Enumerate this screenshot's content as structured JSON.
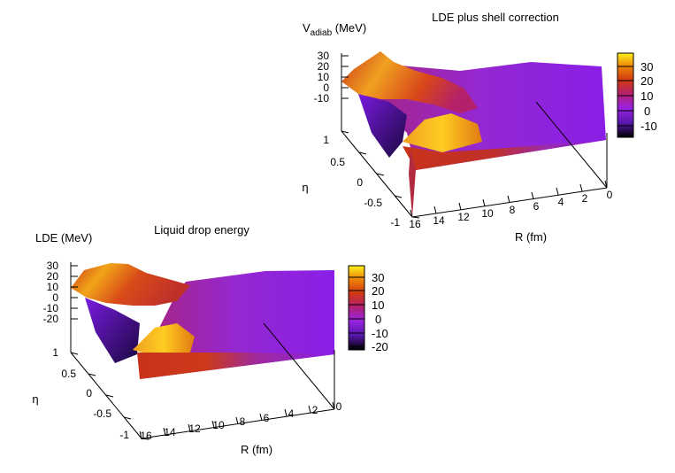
{
  "colors": {
    "purple": "#8a1ee6",
    "red": "#cc3a1a",
    "orange": "#e07a10",
    "gold": "#ffd21a",
    "axis": "#000000"
  },
  "chart_data": [
    {
      "type": "surface3d",
      "title": "LDE plus shell correction",
      "zlabel_main": "V",
      "zlabel_sub": "adiab",
      "zlabel_unit": "(MeV)",
      "xlabel": "R (fm)",
      "ylabel": "η",
      "x_ticks": [
        "16",
        "14",
        "12",
        "10",
        "8",
        "6",
        "4",
        "2",
        "0"
      ],
      "y_ticks": [
        "1",
        "0.5",
        "0",
        "-0.5",
        "-1"
      ],
      "z_ticks": [
        "30",
        "20",
        "10",
        "0",
        "-10"
      ],
      "colorbar_ticks": [
        "30",
        "20",
        "10",
        "0",
        "-10"
      ],
      "zlim": [
        -15,
        35
      ]
    },
    {
      "type": "surface3d",
      "title": "Liquid drop energy",
      "zlabel_main": "LDE",
      "zlabel_sub": "",
      "zlabel_unit": "(MeV)",
      "xlabel": "R (fm)",
      "ylabel": "η",
      "x_ticks": [
        "16",
        "14",
        "12",
        "10",
        "8",
        "6",
        "4",
        "2",
        "0"
      ],
      "y_ticks": [
        "1",
        "0.5",
        "0",
        "-0.5",
        "-1"
      ],
      "z_ticks": [
        "30",
        "20",
        "10",
        "0",
        "-10",
        "-20"
      ],
      "colorbar_ticks": [
        "30",
        "20",
        "10",
        "0",
        "-10",
        "-20"
      ],
      "zlim": [
        -25,
        35
      ]
    }
  ]
}
